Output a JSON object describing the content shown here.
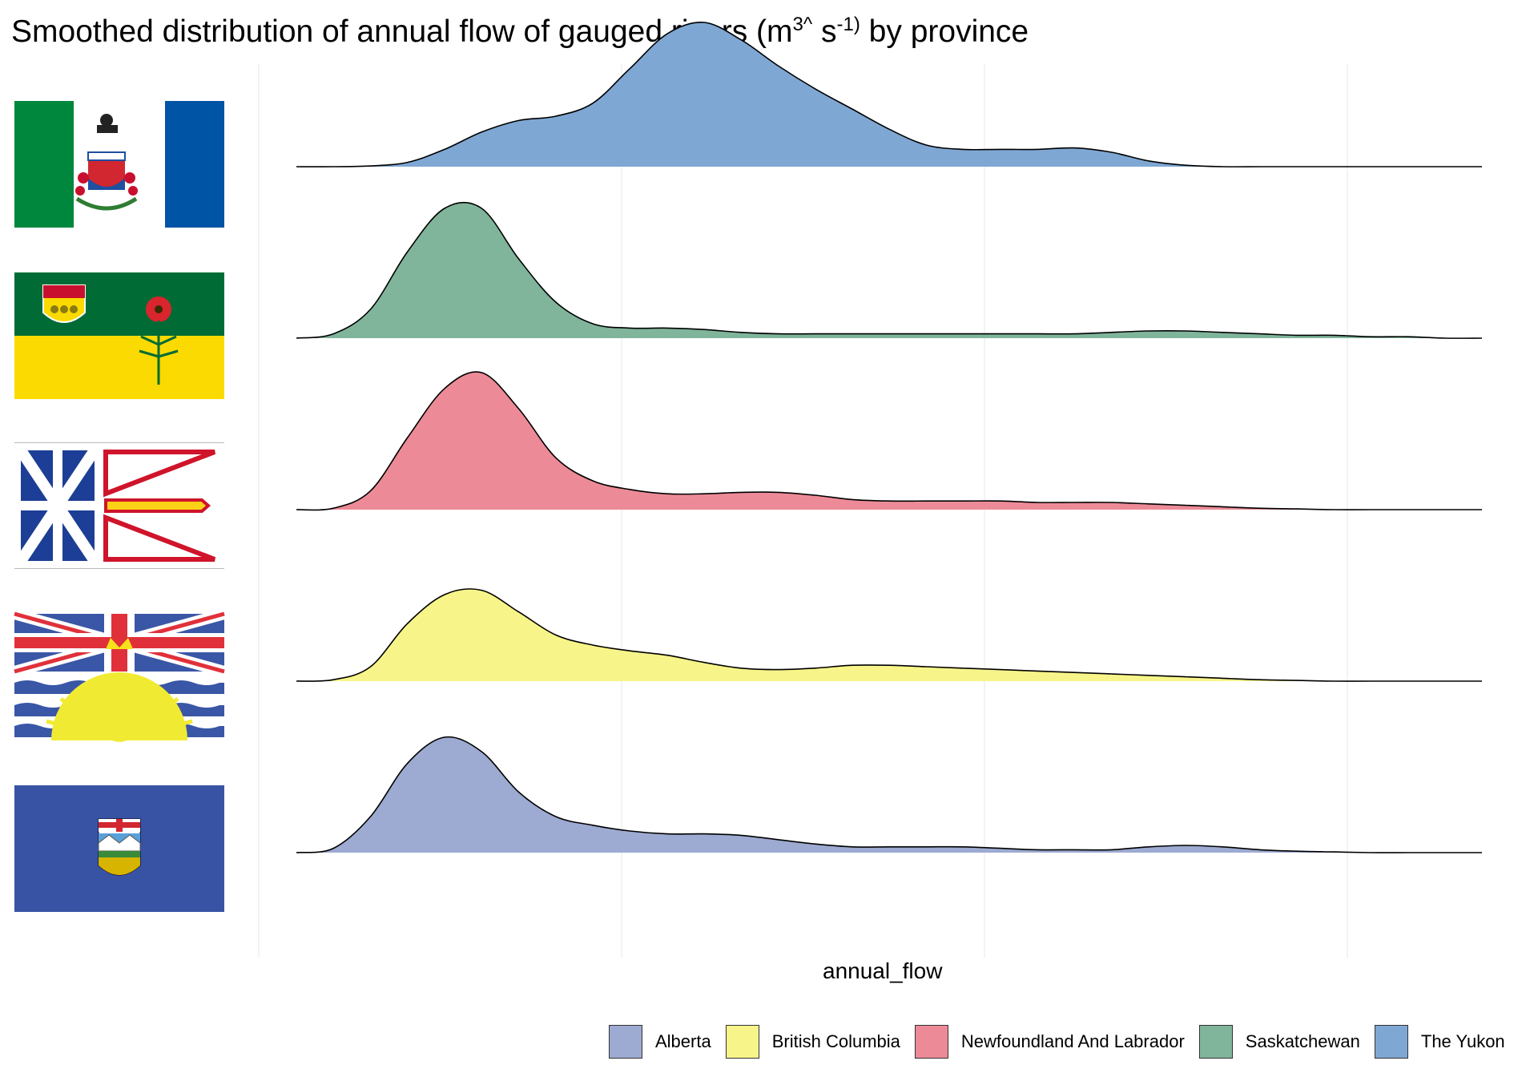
{
  "title": {
    "main": "Smoothed distribution of annual flow of gauged rivers (m",
    "sup1": "3^",
    "mid": " s",
    "sup2": "-1)",
    "end": " by province"
  },
  "chart_data": {
    "type": "area",
    "xlabel": "annual_flow",
    "ylabel": "",
    "grid": true,
    "legend_position": "bottom-right",
    "x": [
      0,
      0.1,
      0.2,
      0.3,
      0.4,
      0.5,
      0.6,
      0.7,
      0.8,
      0.9,
      1.0,
      1.1,
      1.2,
      1.3,
      1.4,
      1.5,
      1.6,
      1.7,
      1.8,
      1.9,
      2.0,
      2.1,
      2.2,
      2.3,
      2.4,
      2.5,
      2.6,
      2.7,
      2.8,
      2.9,
      3.0,
      3.1,
      3.2
    ],
    "series": [
      {
        "name": "The Yukon",
        "color": "#7FA7D3",
        "flag": "yukon-flag",
        "values": [
          0,
          0,
          0.005,
          0.03,
          0.12,
          0.24,
          0.32,
          0.35,
          0.44,
          0.68,
          0.92,
          1.0,
          0.88,
          0.7,
          0.54,
          0.4,
          0.26,
          0.15,
          0.12,
          0.12,
          0.12,
          0.13,
          0.1,
          0.04,
          0.01,
          0,
          0,
          0,
          0,
          0,
          0,
          0,
          0
        ]
      },
      {
        "name": "Saskatchewan",
        "color": "#80B59B",
        "flag": "saskatchewan-flag",
        "values": [
          0,
          0.03,
          0.2,
          0.6,
          0.9,
          0.9,
          0.55,
          0.25,
          0.1,
          0.07,
          0.07,
          0.06,
          0.04,
          0.03,
          0.03,
          0.03,
          0.03,
          0.03,
          0.03,
          0.03,
          0.03,
          0.03,
          0.04,
          0.05,
          0.05,
          0.04,
          0.03,
          0.02,
          0.02,
          0.01,
          0.01,
          0,
          0
        ]
      },
      {
        "name": "Newfoundland And Labrador",
        "color": "#EC8B97",
        "flag": "newfoundland-flag",
        "values": [
          0,
          0.01,
          0.13,
          0.5,
          0.84,
          0.95,
          0.7,
          0.36,
          0.2,
          0.14,
          0.11,
          0.11,
          0.12,
          0.12,
          0.1,
          0.07,
          0.06,
          0.06,
          0.06,
          0.06,
          0.05,
          0.05,
          0.05,
          0.04,
          0.03,
          0.02,
          0.01,
          0.005,
          0,
          0,
          0,
          0,
          0
        ]
      },
      {
        "name": "British Columbia",
        "color": "#F7F48A",
        "flag": "british-columbia-flag",
        "values": [
          0,
          0.01,
          0.1,
          0.4,
          0.6,
          0.63,
          0.48,
          0.32,
          0.25,
          0.21,
          0.18,
          0.13,
          0.09,
          0.08,
          0.09,
          0.11,
          0.11,
          0.1,
          0.09,
          0.08,
          0.07,
          0.06,
          0.05,
          0.04,
          0.03,
          0.02,
          0.01,
          0.005,
          0,
          0,
          0,
          0,
          0
        ]
      },
      {
        "name": "Alberta",
        "color": "#9DAAD1",
        "flag": "alberta-flag",
        "values": [
          0,
          0.03,
          0.25,
          0.62,
          0.8,
          0.7,
          0.42,
          0.25,
          0.19,
          0.15,
          0.13,
          0.13,
          0.12,
          0.09,
          0.06,
          0.04,
          0.04,
          0.04,
          0.04,
          0.03,
          0.02,
          0.02,
          0.02,
          0.04,
          0.05,
          0.04,
          0.02,
          0.01,
          0.005,
          0,
          0,
          0,
          0
        ]
      }
    ],
    "legend_order": [
      "Alberta",
      "British Columbia",
      "Newfoundland And Labrador",
      "Saskatchewan",
      "The Yukon"
    ]
  }
}
